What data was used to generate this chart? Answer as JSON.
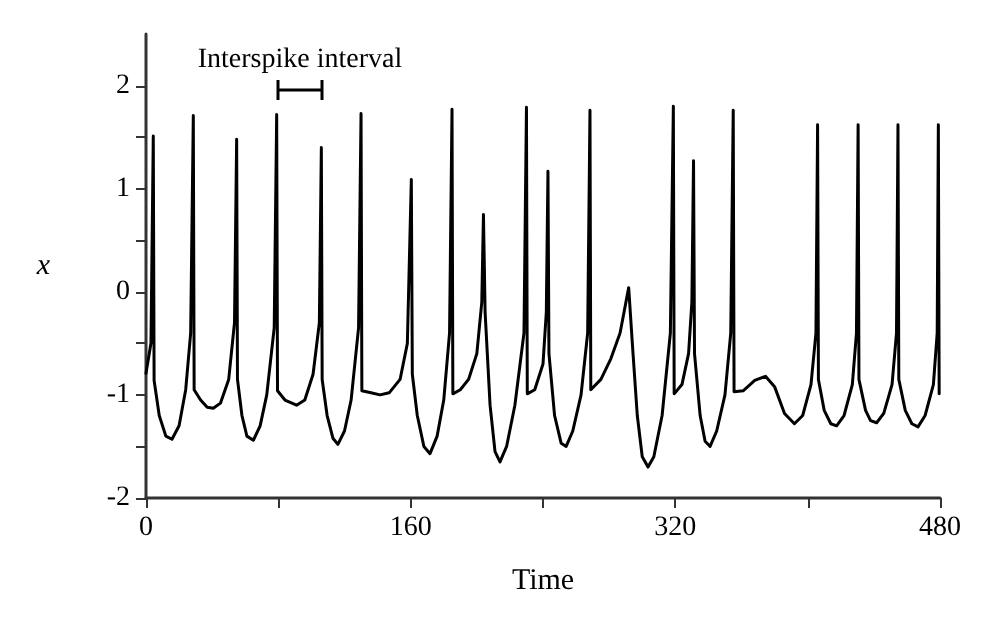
{
  "chart_data": {
    "type": "line",
    "xlabel": "Time",
    "ylabel": "x",
    "annotations": [
      "Interspike interval"
    ],
    "xlim": [
      0,
      480
    ],
    "xticks": [
      0,
      {
        "value": 80,
        "label": null
      },
      160,
      {
        "value": 240,
        "label": null
      },
      320,
      {
        "value": 400,
        "label": null
      },
      480
    ],
    "ylim": [
      -2,
      2.5
    ],
    "yticks": [
      -2,
      {
        "value": -1.5,
        "label": null
      },
      -1,
      {
        "value": -0.5,
        "label": null
      },
      0,
      {
        "value": 0.5,
        "label": null
      },
      1,
      {
        "value": 1.5,
        "label": null
      },
      2
    ],
    "grid": false,
    "marker": "none",
    "line_style": "solid",
    "series": [
      {
        "color": "#000000",
        "x": [
          0,
          3,
          4.4,
          4.9,
          8,
          12,
          15.7,
          20,
          24,
          27,
          28.6,
          29.1,
          33,
          37,
          40.7,
          45,
          50,
          53.5,
          54.8,
          55.3,
          58,
          61,
          64.9,
          69,
          73,
          77.5,
          79,
          79.5,
          84,
          91,
          96,
          101,
          104.8,
          106,
          106.5,
          109.5,
          113,
          116,
          120,
          124,
          128.5,
          130,
          130.5,
          136,
          141.5,
          147,
          153.6,
          158,
          160.4,
          161,
          164,
          168,
          171.7,
          176,
          180,
          183.5,
          185,
          185.5,
          190,
          195,
          200,
          203,
          204,
          205,
          208,
          211,
          214,
          218,
          223,
          228.5,
          230,
          230.5,
          235,
          240,
          242,
          243,
          243.6,
          247,
          251,
          254,
          258,
          263,
          267,
          268.4,
          268.9,
          275,
          281,
          286.6,
          291.8,
          294,
          297,
          300,
          303.5,
          307,
          312,
          317,
          318.8,
          319.3,
          324,
          328,
          330,
          331,
          331.6,
          335,
          338,
          341,
          345,
          350,
          353.5,
          355,
          355.5,
          361,
          368,
          374.5,
          380,
          386,
          392,
          397,
          402,
          405,
          406,
          406.5,
          410,
          414,
          417.5,
          422,
          427,
          429.5,
          430.5,
          431,
          435,
          438,
          441.7,
          446,
          451,
          453.7,
          454.6,
          455.1,
          459,
          463,
          466.7,
          471,
          476,
          478.3,
          479,
          479.5
        ],
        "values": [
          -0.79,
          -0.5,
          1.51,
          -0.86,
          -1.2,
          -1.4,
          -1.43,
          -1.3,
          -0.95,
          -0.4,
          1.71,
          -0.95,
          -1.05,
          -1.12,
          -1.13,
          -1.08,
          -0.85,
          -0.3,
          1.48,
          -0.85,
          -1.2,
          -1.4,
          -1.44,
          -1.3,
          -1.0,
          -0.35,
          1.72,
          -0.96,
          -1.05,
          -1.1,
          -1.05,
          -0.8,
          -0.3,
          1.4,
          -0.85,
          -1.2,
          -1.42,
          -1.48,
          -1.35,
          -1.05,
          -0.35,
          1.73,
          -0.96,
          -0.98,
          -1.0,
          -0.98,
          -0.85,
          -0.5,
          1.09,
          -0.8,
          -1.2,
          -1.5,
          -1.57,
          -1.4,
          -1.05,
          -0.4,
          1.77,
          -0.99,
          -0.95,
          -0.85,
          -0.6,
          -0.1,
          0.75,
          -0.2,
          -1.1,
          -1.55,
          -1.65,
          -1.5,
          -1.1,
          -0.4,
          1.79,
          -0.99,
          -0.95,
          -0.7,
          -0.2,
          1.17,
          -0.6,
          -1.2,
          -1.47,
          -1.5,
          -1.35,
          -1.0,
          -0.4,
          1.76,
          -0.95,
          -0.85,
          -0.65,
          -0.4,
          0.04,
          -0.5,
          -1.2,
          -1.6,
          -1.7,
          -1.6,
          -1.2,
          -0.4,
          1.8,
          -0.99,
          -0.9,
          -0.6,
          -0.1,
          1.27,
          -0.6,
          -1.2,
          -1.45,
          -1.5,
          -1.35,
          -1.0,
          -0.4,
          1.76,
          -0.97,
          -0.96,
          -0.86,
          -0.82,
          -0.92,
          -1.18,
          -1.28,
          -1.2,
          -0.9,
          -0.4,
          1.62,
          -0.85,
          -1.15,
          -1.28,
          -1.3,
          -1.2,
          -0.9,
          -0.4,
          1.62,
          -0.85,
          -1.15,
          -1.25,
          -1.27,
          -1.18,
          -0.9,
          -0.4,
          1.62,
          -0.85,
          -1.15,
          -1.28,
          -1.31,
          -1.2,
          -0.9,
          -0.4,
          1.62,
          -0.99
        ]
      }
    ]
  }
}
